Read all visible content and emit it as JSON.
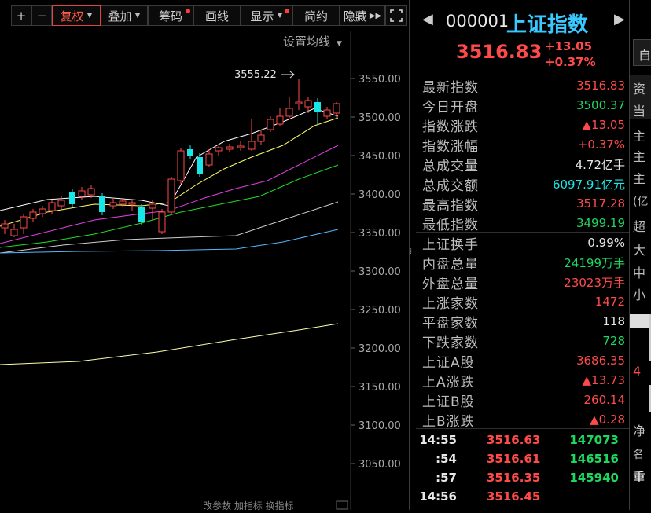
{
  "toolbar": {
    "plus": "+",
    "minus": "−",
    "fuquan": "复权",
    "diejia": "叠加",
    "chouma": "筹码",
    "huaxian": "画线",
    "xianshi": "显示",
    "jianyue": "简约",
    "yincang": "隐藏"
  },
  "chart": {
    "settings_label": "设置均线",
    "high_marker": "3555.22",
    "y_ticks": [
      "3550.00",
      "3500.00",
      "3450.00",
      "3400.00",
      "3350.00",
      "3300.00",
      "3250.00",
      "3200.00",
      "3150.00",
      "3100.00",
      "3050.00"
    ],
    "bottom_tabs": "改参数  加指标  换指标",
    "colors": {
      "up": "#ff4a4a",
      "down": "#19e6e6",
      "ma5": "#ffffff",
      "ma10": "#ffff66",
      "ma20": "#e040e0",
      "ma30": "#22dd22",
      "ma60": "#cfcfcf",
      "ma120": "#55b7ff",
      "ma250": "#ffffaa"
    }
  },
  "header": {
    "code": "000001",
    "name": "上证指数",
    "price": "3516.83",
    "change": "+13.05",
    "change_pct": "+0.37%"
  },
  "stats": [
    {
      "label": "最新指数",
      "value": "3516.83",
      "color": "red"
    },
    {
      "label": "今日开盘",
      "value": "3500.37",
      "color": "green"
    },
    {
      "label": "指数涨跌",
      "value": "▲13.05",
      "color": "red"
    },
    {
      "label": "指数涨幅",
      "value": "+0.37%",
      "color": "red"
    },
    {
      "label": "总成交量",
      "value": "4.72亿手",
      "color": "white"
    },
    {
      "label": "总成交额",
      "value": "6097.91亿元",
      "color": "cyan"
    },
    {
      "label": "最高指数",
      "value": "3517.28",
      "color": "red"
    },
    {
      "label": "最低指数",
      "value": "3499.19",
      "color": "green"
    },
    {
      "label": "上证换手",
      "value": "0.99%",
      "color": "white"
    },
    {
      "label": "内盘总量",
      "value": "24199万手",
      "color": "green"
    },
    {
      "label": "外盘总量",
      "value": "23023万手",
      "color": "red"
    },
    {
      "label": "上涨家数",
      "value": "1472",
      "color": "red"
    },
    {
      "label": "平盘家数",
      "value": "118",
      "color": "white"
    },
    {
      "label": "下跌家数",
      "value": "728",
      "color": "green"
    },
    {
      "label": "上证A股",
      "value": "3686.35",
      "color": "red"
    },
    {
      "label": "上A涨跌",
      "value": "▲13.73",
      "color": "red"
    },
    {
      "label": "上证B股",
      "value": "260.14",
      "color": "red"
    },
    {
      "label": "上B涨跌",
      "value": "▲0.28",
      "color": "red"
    }
  ],
  "ticks": [
    {
      "time": "14:55",
      "price": "3516.63",
      "vol": "147073"
    },
    {
      "time": ":54",
      "price": "3516.61",
      "vol": "146516"
    },
    {
      "time": ":57",
      "price": "3516.35",
      "vol": "145940"
    },
    {
      "time": "14:56",
      "price": "3516.45",
      "vol": ""
    }
  ],
  "far_right": {
    "zi": "自",
    "zi2": "资",
    "dang": "当",
    "zhu1": "主",
    "zhu2": "主",
    "zhu3": "主",
    "yi": "(亿",
    "chao": "超",
    "da": "大",
    "zhong": "中",
    "xiao": "小",
    "num4": "4",
    "jing": "净",
    "ming": "名",
    "zhong2": "重"
  }
}
